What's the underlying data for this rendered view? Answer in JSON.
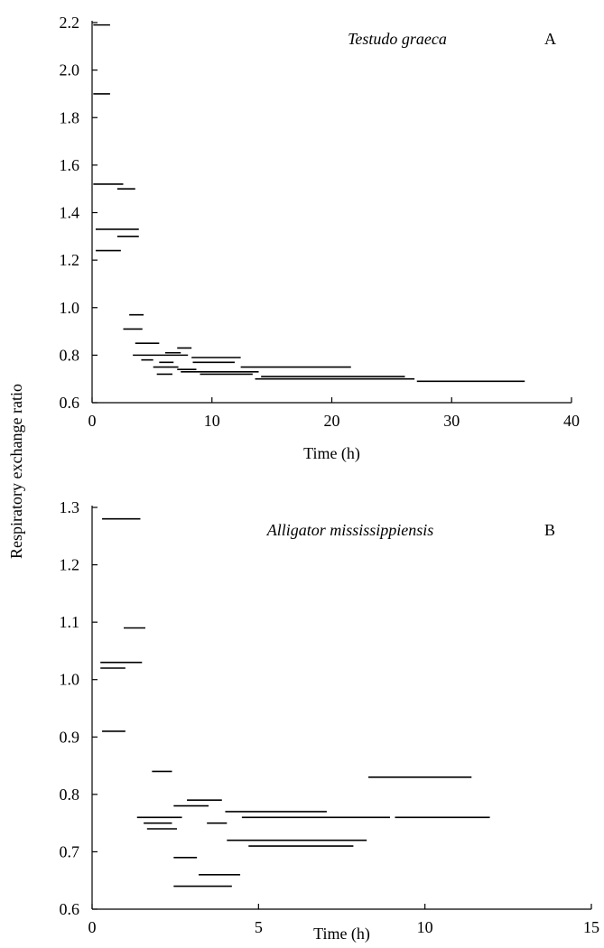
{
  "ylabel_shared": "Respiratory exchange ratio",
  "chart_data": [
    {
      "type": "line",
      "panel": "A",
      "title": "Testudo graeca",
      "xlabel": "Time (h)",
      "ylabel": "Respiratory exchange ratio",
      "xlim": [
        0,
        40
      ],
      "ylim": [
        0.6,
        2.2
      ],
      "xticks": [
        0,
        10,
        20,
        30,
        40
      ],
      "yticks": [
        0.6,
        0.8,
        1.0,
        1.2,
        1.4,
        1.6,
        1.8,
        2.0,
        2.2
      ],
      "ytick_labels": [
        "0.6",
        "0.8",
        "1.0",
        "1.2",
        "1.4",
        "1.6",
        "1.8",
        "2.0",
        "2.2"
      ],
      "xtick_labels": [
        "0",
        "10",
        "20",
        "30",
        "40"
      ],
      "grid": false,
      "segments": [
        {
          "x0": 0.1,
          "x1": 1.5,
          "y": 2.19
        },
        {
          "x0": 0.1,
          "x1": 1.5,
          "y": 1.9
        },
        {
          "x0": 0.1,
          "x1": 2.6,
          "y": 1.52
        },
        {
          "x0": 2.1,
          "x1": 3.6,
          "y": 1.5
        },
        {
          "x0": 0.3,
          "x1": 3.9,
          "y": 1.33
        },
        {
          "x0": 2.1,
          "x1": 3.9,
          "y": 1.3
        },
        {
          "x0": 0.3,
          "x1": 2.4,
          "y": 1.24
        },
        {
          "x0": 3.1,
          "x1": 4.3,
          "y": 0.97
        },
        {
          "x0": 2.6,
          "x1": 4.2,
          "y": 0.91
        },
        {
          "x0": 3.6,
          "x1": 5.6,
          "y": 0.85
        },
        {
          "x0": 7.1,
          "x1": 8.3,
          "y": 0.83
        },
        {
          "x0": 6.1,
          "x1": 7.4,
          "y": 0.81
        },
        {
          "x0": 3.4,
          "x1": 8.0,
          "y": 0.8
        },
        {
          "x0": 8.3,
          "x1": 12.4,
          "y": 0.79
        },
        {
          "x0": 4.1,
          "x1": 5.1,
          "y": 0.78
        },
        {
          "x0": 5.6,
          "x1": 6.8,
          "y": 0.77
        },
        {
          "x0": 8.4,
          "x1": 11.9,
          "y": 0.77
        },
        {
          "x0": 5.1,
          "x1": 7.2,
          "y": 0.75
        },
        {
          "x0": 12.4,
          "x1": 21.6,
          "y": 0.75
        },
        {
          "x0": 7.1,
          "x1": 8.7,
          "y": 0.74
        },
        {
          "x0": 7.4,
          "x1": 13.9,
          "y": 0.73
        },
        {
          "x0": 5.4,
          "x1": 6.7,
          "y": 0.72
        },
        {
          "x0": 9.0,
          "x1": 13.4,
          "y": 0.72
        },
        {
          "x0": 14.1,
          "x1": 26.1,
          "y": 0.71
        },
        {
          "x0": 13.6,
          "x1": 26.9,
          "y": 0.7
        },
        {
          "x0": 27.1,
          "x1": 36.1,
          "y": 0.69
        }
      ]
    },
    {
      "type": "line",
      "panel": "B",
      "title": "Alligator mississippiensis",
      "xlabel": "Time (h)",
      "ylabel": "Respiratory exchange ratio",
      "xlim": [
        0,
        15
      ],
      "ylim": [
        0.6,
        1.3
      ],
      "xticks": [
        0,
        5,
        10,
        15
      ],
      "yticks": [
        0.6,
        0.7,
        0.8,
        0.9,
        1.0,
        1.1,
        1.2,
        1.3
      ],
      "ytick_labels": [
        "0.6",
        "0.7",
        "0.8",
        "0.9",
        "1.0",
        "1.1",
        "1.2",
        "1.3"
      ],
      "xtick_labels": [
        "0",
        "5",
        "10",
        "15"
      ],
      "grid": false,
      "segments": [
        {
          "x0": 0.3,
          "x1": 1.45,
          "y": 1.28
        },
        {
          "x0": 0.95,
          "x1": 1.6,
          "y": 1.09
        },
        {
          "x0": 0.25,
          "x1": 1.5,
          "y": 1.03
        },
        {
          "x0": 0.25,
          "x1": 1.0,
          "y": 1.02
        },
        {
          "x0": 0.3,
          "x1": 1.0,
          "y": 0.91
        },
        {
          "x0": 1.8,
          "x1": 2.4,
          "y": 0.84
        },
        {
          "x0": 8.3,
          "x1": 11.4,
          "y": 0.83
        },
        {
          "x0": 2.85,
          "x1": 3.9,
          "y": 0.79
        },
        {
          "x0": 2.45,
          "x1": 3.5,
          "y": 0.78
        },
        {
          "x0": 4.0,
          "x1": 7.05,
          "y": 0.77
        },
        {
          "x0": 1.35,
          "x1": 2.7,
          "y": 0.76
        },
        {
          "x0": 4.5,
          "x1": 8.95,
          "y": 0.76
        },
        {
          "x0": 9.1,
          "x1": 11.95,
          "y": 0.76
        },
        {
          "x0": 1.55,
          "x1": 2.4,
          "y": 0.75
        },
        {
          "x0": 3.45,
          "x1": 4.05,
          "y": 0.75
        },
        {
          "x0": 1.65,
          "x1": 2.55,
          "y": 0.74
        },
        {
          "x0": 4.05,
          "x1": 8.25,
          "y": 0.72
        },
        {
          "x0": 4.7,
          "x1": 7.85,
          "y": 0.71
        },
        {
          "x0": 2.45,
          "x1": 3.15,
          "y": 0.69
        },
        {
          "x0": 3.2,
          "x1": 4.45,
          "y": 0.66
        },
        {
          "x0": 2.45,
          "x1": 4.2,
          "y": 0.64
        }
      ]
    }
  ]
}
